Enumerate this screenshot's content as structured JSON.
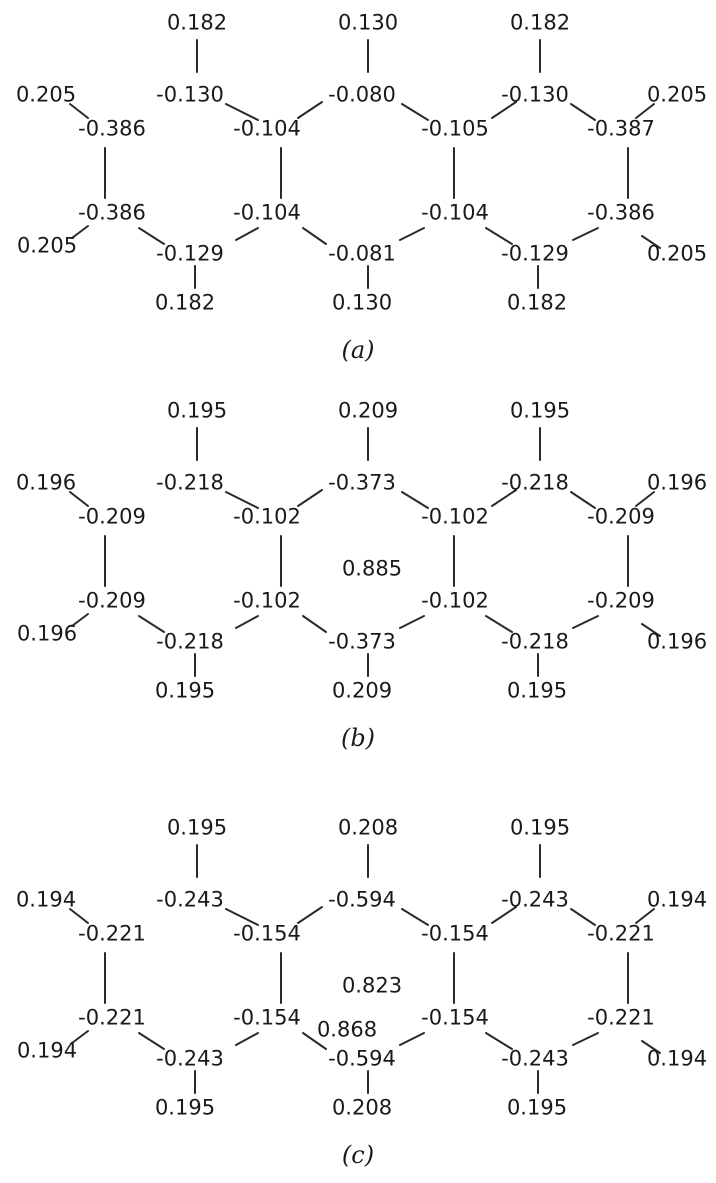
{
  "panels": [
    {
      "caption": "(a)",
      "labels": {
        "h_top_left": "0.182",
        "h_top_mid": "0.130",
        "h_top_right": "0.182",
        "h_left_up": "0.205",
        "h_right_up": "0.205",
        "c_top_left": "-0.130",
        "c_top_mid": "-0.080",
        "c_top_right": "-0.130",
        "c_ul": "-0.386",
        "c_j1": "-0.104",
        "c_j2": "-0.105",
        "c_ur": "-0.387",
        "c_ll": "-0.386",
        "c_j3": "-0.104",
        "c_j4": "-0.104",
        "c_lr": "-0.386",
        "h_left_down": "0.205",
        "h_right_down": "0.205",
        "c_bot_left": "-0.129",
        "c_bot_mid": "-0.081",
        "c_bot_right": "-0.129",
        "h_bot_left": "0.182",
        "h_bot_mid": "0.130",
        "h_bot_right": "0.182",
        "center_1": "",
        "center_2": ""
      }
    },
    {
      "caption": "(b)",
      "labels": {
        "h_top_left": "0.195",
        "h_top_mid": "0.209",
        "h_top_right": "0.195",
        "h_left_up": "0.196",
        "h_right_up": "0.196",
        "c_top_left": "-0.218",
        "c_top_mid": "-0.373",
        "c_top_right": "-0.218",
        "c_ul": "-0.209",
        "c_j1": "-0.102",
        "c_j2": "-0.102",
        "c_ur": "-0.209",
        "c_ll": "-0.209",
        "c_j3": "-0.102",
        "c_j4": "-0.102",
        "c_lr": "-0.209",
        "h_left_down": "0.196",
        "h_right_down": "0.196",
        "c_bot_left": "-0.218",
        "c_bot_mid": "-0.373",
        "c_bot_right": "-0.218",
        "h_bot_left": "0.195",
        "h_bot_mid": "0.209",
        "h_bot_right": "0.195",
        "center_1": "0.885",
        "center_2": ""
      }
    },
    {
      "caption": "(c)",
      "labels": {
        "h_top_left": "0.195",
        "h_top_mid": "0.208",
        "h_top_right": "0.195",
        "h_left_up": "0.194",
        "h_right_up": "0.194",
        "c_top_left": "-0.243",
        "c_top_mid": "-0.594",
        "c_top_right": "-0.243",
        "c_ul": "-0.221",
        "c_j1": "-0.154",
        "c_j2": "-0.154",
        "c_ur": "-0.221",
        "c_ll": "-0.221",
        "c_j3": "-0.154",
        "c_j4": "-0.154",
        "c_lr": "-0.221",
        "h_left_down": "0.194",
        "h_right_down": "0.194",
        "c_bot_left": "-0.243",
        "c_bot_mid": "-0.594",
        "c_bot_right": "-0.243",
        "h_bot_left": "0.195",
        "h_bot_mid": "0.208",
        "h_bot_right": "0.195",
        "center_1": "0.823",
        "center_2": "0.868"
      }
    }
  ]
}
